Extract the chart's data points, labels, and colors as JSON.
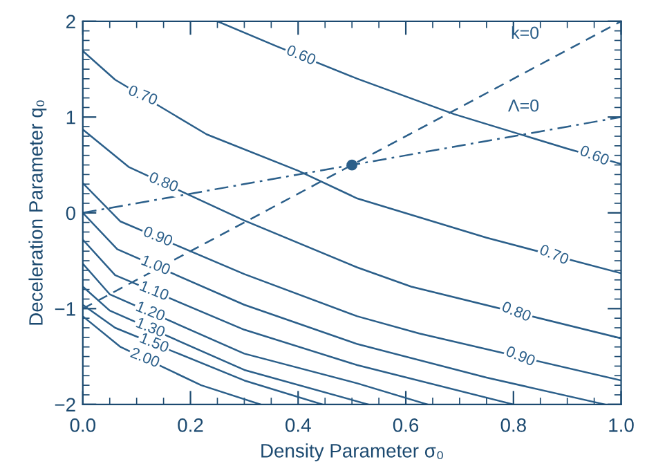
{
  "chart_data": {
    "type": "line",
    "xlabel": "Density Parameter σ₀",
    "ylabel": "Deceleration Parameter q₀",
    "xlim": [
      0,
      1
    ],
    "ylim": [
      -2,
      2
    ],
    "xticks": [
      {
        "value": 0,
        "label": "0.0"
      },
      {
        "value": 0.2,
        "label": "0.2"
      },
      {
        "value": 0.4,
        "label": "0.4"
      },
      {
        "value": 0.6,
        "label": "0.6"
      },
      {
        "value": 0.8,
        "label": "0.8"
      },
      {
        "value": 1,
        "label": "1.0"
      }
    ],
    "yticks": [
      {
        "value": -2,
        "label": "−2"
      },
      {
        "value": -1,
        "label": "−1"
      },
      0,
      1,
      2
    ],
    "grid": false,
    "legend": false,
    "marker": "none",
    "line_style": "solid",
    "series": [
      {
        "name": "0.60",
        "color": "#2b5f8a",
        "x": [
          0.25,
          0.36,
          0.51,
          0.69,
          0.9,
          1.0
        ],
        "values": [
          2.0,
          1.74,
          1.4,
          1.03,
          0.67,
          0.51
        ]
      },
      {
        "name": "0.70",
        "color": "#2b5f8a",
        "x": [
          0,
          0.06,
          0.23,
          0.4,
          0.51,
          0.75,
          1.0
        ],
        "values": [
          1.69,
          1.39,
          0.82,
          0.44,
          0.15,
          -0.26,
          -0.63
        ]
      },
      {
        "name": "0.80",
        "color": "#2b5f8a",
        "x": [
          0,
          0.085,
          0.3,
          0.51,
          0.61,
          1.0
        ],
        "values": [
          0.87,
          0.48,
          -0.08,
          -0.57,
          -0.77,
          -1.31
        ]
      },
      {
        "name": "0.90",
        "color": "#2b5f8a",
        "x": [
          0,
          0.07,
          0.3,
          0.51,
          0.625,
          1.0
        ],
        "values": [
          0.31,
          -0.09,
          -0.64,
          -1.08,
          -1.26,
          -1.75
        ]
      },
      {
        "name": "1.00",
        "color": "#2b5f8a",
        "x": [
          0,
          0.064,
          0.3,
          0.51,
          0.75,
          0.97
        ],
        "values": [
          0.0,
          -0.38,
          -0.96,
          -1.37,
          -1.72,
          -2.0
        ]
      },
      {
        "name": "1.10",
        "color": "#2b5f8a",
        "x": [
          0,
          0.06,
          0.3,
          0.51,
          0.8
        ],
        "values": [
          -0.28,
          -0.65,
          -1.22,
          -1.59,
          -2.0
        ]
      },
      {
        "name": "1.20",
        "color": "#2b5f8a",
        "x": [
          0,
          0.05,
          0.3,
          0.51,
          0.64
        ],
        "values": [
          -0.53,
          -0.85,
          -1.47,
          -1.78,
          -2.0
        ]
      },
      {
        "name": "1.30",
        "color": "#2b5f8a",
        "x": [
          0,
          0.05,
          0.3,
          0.53
        ],
        "values": [
          -0.77,
          -1.02,
          -1.64,
          -2.0
        ]
      },
      {
        "name": "1.50",
        "color": "#2b5f8a",
        "x": [
          0,
          0.06,
          0.3,
          0.445
        ],
        "values": [
          -0.96,
          -1.2,
          -1.75,
          -2.0
        ]
      },
      {
        "name": "2.00",
        "color": "#2b5f8a",
        "x": [
          0,
          0.07,
          0.22,
          0.33
        ],
        "values": [
          -1.08,
          -1.4,
          -1.8,
          -2.0
        ]
      },
      {
        "name": "k=0",
        "color": "#2b5f8a",
        "line_style": "dashed",
        "x": [
          0,
          1
        ],
        "values": [
          -1,
          2
        ]
      },
      {
        "name": "Λ=0",
        "color": "#2b5f8a",
        "line_style": "dashdot",
        "x": [
          0,
          1
        ],
        "values": [
          0,
          1
        ]
      },
      {
        "type": "scatter",
        "color": "#2b5f8a",
        "marker": "circle",
        "x": [
          0.5
        ],
        "values": [
          0.5
        ]
      }
    ]
  }
}
